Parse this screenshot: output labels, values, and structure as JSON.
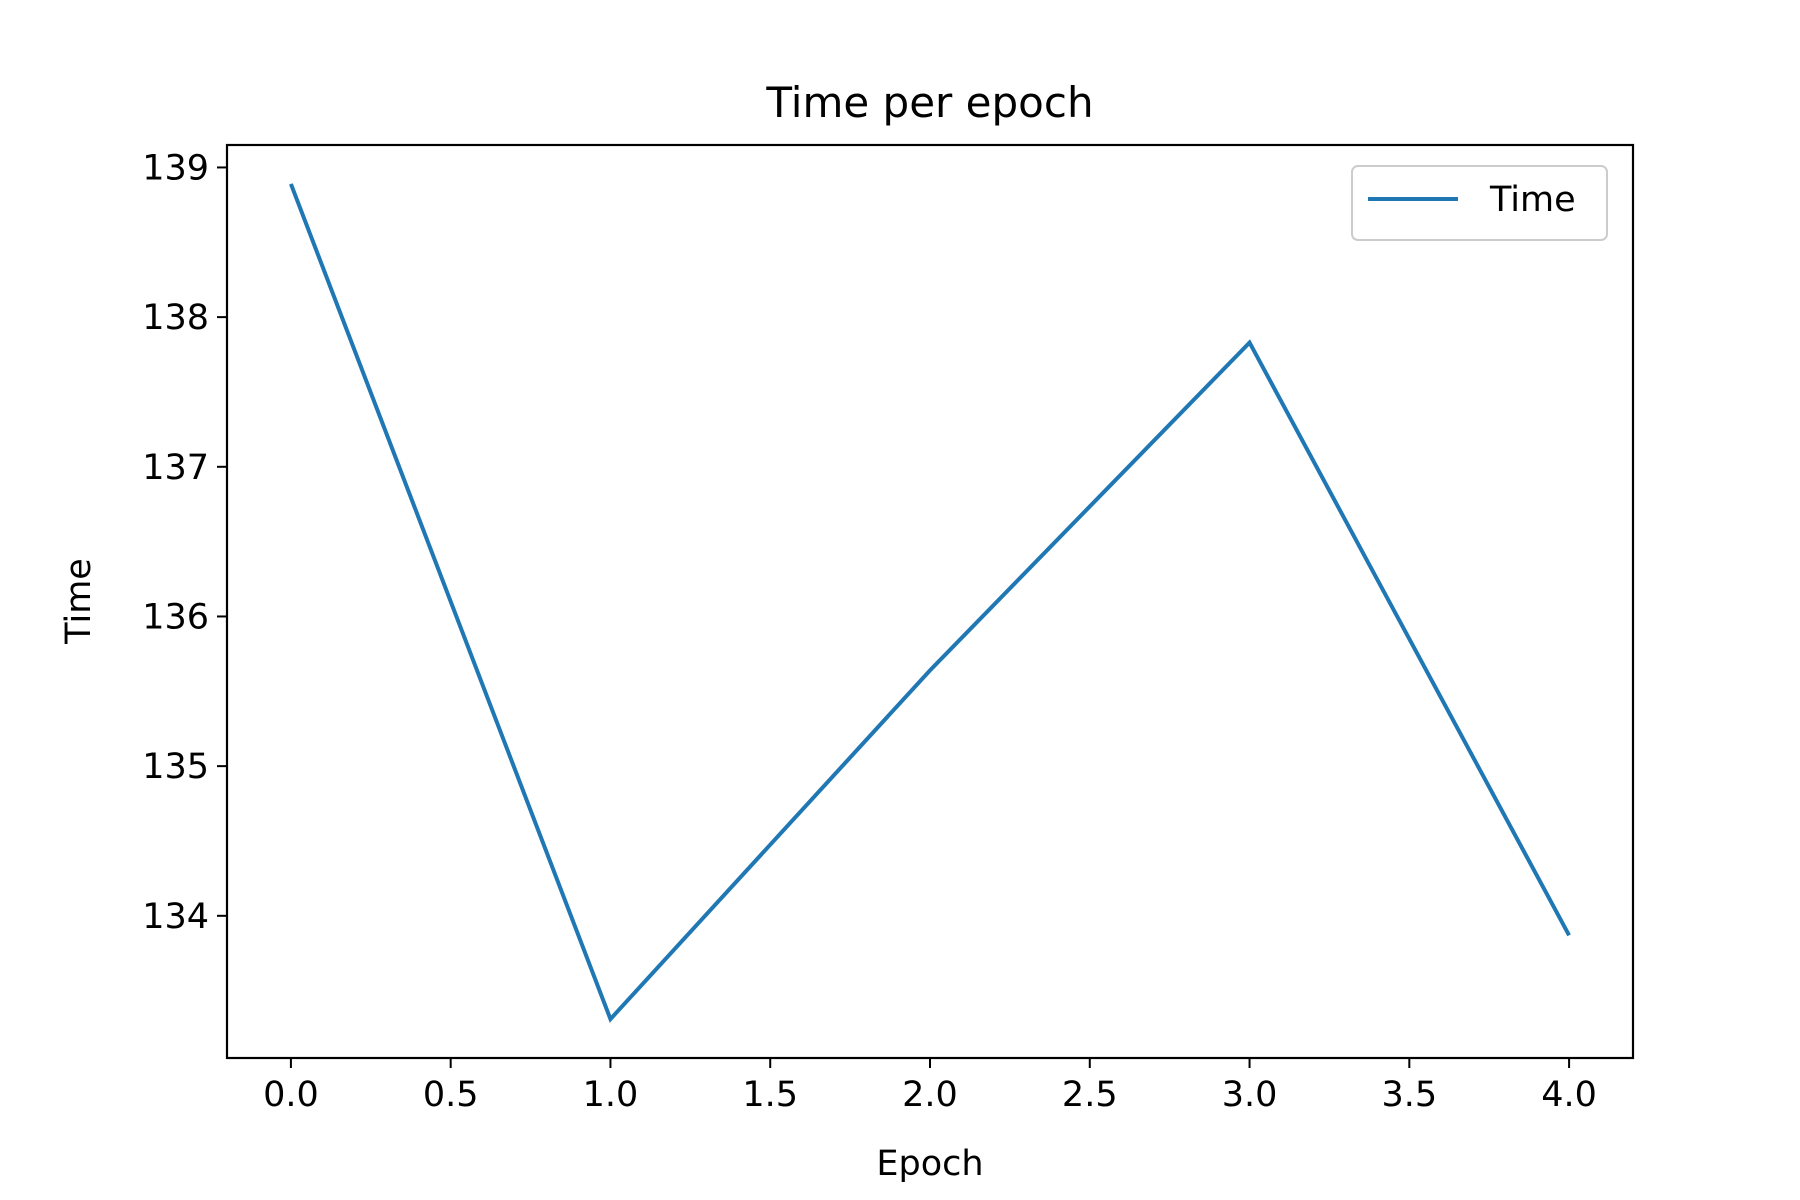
{
  "chart_data": {
    "type": "line",
    "title": "Time per epoch",
    "xlabel": "Epoch",
    "ylabel": "Time",
    "xlim": [
      -0.2,
      4.2
    ],
    "ylim": [
      133.05,
      139.15
    ],
    "xticks": [
      0.0,
      0.5,
      1.0,
      1.5,
      2.0,
      2.5,
      3.0,
      3.5,
      4.0
    ],
    "xtick_labels": [
      "0.0",
      "0.5",
      "1.0",
      "1.5",
      "2.0",
      "2.5",
      "3.0",
      "3.5",
      "4.0"
    ],
    "yticks": [
      134,
      135,
      136,
      137,
      138,
      139
    ],
    "ytick_labels": [
      "134",
      "135",
      "136",
      "137",
      "138",
      "139"
    ],
    "grid": false,
    "legend_position": "top-right",
    "series": [
      {
        "name": "Time",
        "color": "#1f77b4",
        "x": [
          0,
          1,
          2,
          3,
          4
        ],
        "y": [
          138.89,
          133.31,
          135.64,
          137.83,
          133.87
        ]
      }
    ]
  }
}
